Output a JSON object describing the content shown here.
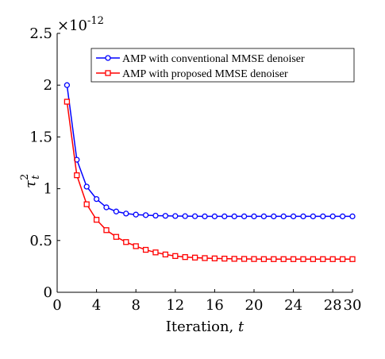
{
  "chart_data": {
    "type": "line",
    "exponent_label": "×10",
    "exponent_power": "-12",
    "ylabel_base": "τ",
    "ylabel_sup": "2",
    "ylabel_sub": "t",
    "xlabel_text": "Iteration, ",
    "xlabel_var": "t",
    "xlim": [
      0,
      30
    ],
    "ylim": [
      0,
      2.5
    ],
    "x_ticks": [
      0,
      4,
      8,
      12,
      16,
      20,
      24,
      28,
      30
    ],
    "y_ticks": [
      0,
      0.5,
      1,
      1.5,
      2,
      2.5
    ],
    "y_tick_labels": [
      "0",
      "0.5",
      "1",
      "1.5",
      "2",
      "2.5"
    ],
    "legend_position": "top-right",
    "grid": false,
    "x": [
      1,
      2,
      3,
      4,
      5,
      6,
      7,
      8,
      9,
      10,
      11,
      12,
      13,
      14,
      15,
      16,
      17,
      18,
      19,
      20,
      21,
      22,
      23,
      24,
      25,
      26,
      27,
      28,
      29,
      30
    ],
    "series": [
      {
        "name": "AMP with conventional MMSE denoiser",
        "color": "#0000ff",
        "marker": "circle",
        "values": [
          2.0,
          1.28,
          1.02,
          0.9,
          0.82,
          0.78,
          0.76,
          0.75,
          0.745,
          0.74,
          0.738,
          0.736,
          0.735,
          0.734,
          0.733,
          0.733,
          0.733,
          0.733,
          0.733,
          0.733,
          0.733,
          0.733,
          0.733,
          0.733,
          0.733,
          0.733,
          0.733,
          0.733,
          0.733,
          0.733
        ]
      },
      {
        "name": "AMP with proposed MMSE denoiser",
        "color": "#ff0000",
        "marker": "square",
        "values": [
          1.84,
          1.13,
          0.85,
          0.7,
          0.6,
          0.535,
          0.485,
          0.445,
          0.41,
          0.385,
          0.365,
          0.35,
          0.34,
          0.335,
          0.33,
          0.327,
          0.325,
          0.323,
          0.322,
          0.321,
          0.32,
          0.32,
          0.32,
          0.32,
          0.32,
          0.32,
          0.32,
          0.32,
          0.32,
          0.32
        ]
      }
    ]
  }
}
